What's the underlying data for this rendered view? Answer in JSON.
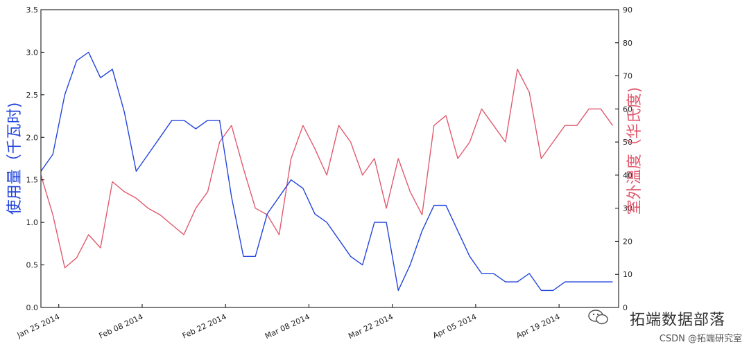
{
  "chart_data": {
    "type": "line",
    "left_axis": {
      "label": "使用量（千瓦时)",
      "ylim": [
        0,
        3.5
      ],
      "ticks": [
        "0.0",
        "0.5",
        "1.0",
        "1.5",
        "2.0",
        "2.5",
        "3.0",
        "3.5"
      ]
    },
    "right_axis": {
      "label": "室外温度（华氏度)",
      "ylim": [
        0,
        90
      ],
      "ticks": [
        "0",
        "10",
        "20",
        "30",
        "40",
        "50",
        "60",
        "70",
        "80",
        "90"
      ]
    },
    "x_axis": {
      "start": "2014-01-22",
      "end": "2014-04-29",
      "tick_dates": [
        "2014-01-25",
        "2014-02-08",
        "2014-02-22",
        "2014-03-08",
        "2014-03-22",
        "2014-04-05",
        "2014-04-19"
      ],
      "tick_labels": [
        "Jan 25 2014",
        "Feb 08 2014",
        "Feb 22 2014",
        "Mar 08 2014",
        "Mar 22 2014",
        "Apr 05 2014",
        "Apr 19 2014"
      ]
    },
    "grid": false,
    "colors": {
      "usage": "#2244dd",
      "temperature": "#e05a6e"
    },
    "series": [
      {
        "axis": "left",
        "x": [
          "2014-01-22",
          "2014-01-24",
          "2014-01-26",
          "2014-01-28",
          "2014-01-30",
          "2014-02-01",
          "2014-02-03",
          "2014-02-05",
          "2014-02-07",
          "2014-02-09",
          "2014-02-11",
          "2014-02-13",
          "2014-02-15",
          "2014-02-17",
          "2014-02-19",
          "2014-02-21",
          "2014-02-23",
          "2014-02-25",
          "2014-02-27",
          "2014-03-01",
          "2014-03-03",
          "2014-03-05",
          "2014-03-07",
          "2014-03-09",
          "2014-03-11",
          "2014-03-13",
          "2014-03-15",
          "2014-03-17",
          "2014-03-19",
          "2014-03-21",
          "2014-03-23",
          "2014-03-25",
          "2014-03-27",
          "2014-03-29",
          "2014-03-31",
          "2014-04-02",
          "2014-04-04",
          "2014-04-06",
          "2014-04-08",
          "2014-04-10",
          "2014-04-12",
          "2014-04-14",
          "2014-04-16",
          "2014-04-18",
          "2014-04-20",
          "2014-04-22",
          "2014-04-24",
          "2014-04-26",
          "2014-04-28"
        ],
        "values": [
          1.6,
          1.8,
          2.5,
          2.9,
          3.0,
          2.7,
          2.8,
          2.3,
          1.6,
          1.8,
          2.0,
          2.2,
          2.2,
          2.1,
          2.2,
          2.2,
          1.3,
          0.6,
          0.6,
          1.1,
          1.3,
          1.5,
          1.4,
          1.1,
          1.0,
          0.8,
          0.6,
          0.5,
          1.0,
          1.0,
          0.2,
          0.5,
          0.9,
          1.2,
          1.2,
          0.9,
          0.6,
          0.4,
          0.4,
          0.3,
          0.3,
          0.4,
          0.2,
          0.2,
          0.3,
          0.3,
          0.3,
          0.3,
          0.3
        ]
      },
      {
        "axis": "right",
        "x": [
          "2014-01-22",
          "2014-01-24",
          "2014-01-26",
          "2014-01-28",
          "2014-01-30",
          "2014-02-01",
          "2014-02-03",
          "2014-02-05",
          "2014-02-07",
          "2014-02-09",
          "2014-02-11",
          "2014-02-13",
          "2014-02-15",
          "2014-02-17",
          "2014-02-19",
          "2014-02-21",
          "2014-02-23",
          "2014-02-25",
          "2014-02-27",
          "2014-03-01",
          "2014-03-03",
          "2014-03-05",
          "2014-03-07",
          "2014-03-09",
          "2014-03-11",
          "2014-03-13",
          "2014-03-15",
          "2014-03-17",
          "2014-03-19",
          "2014-03-21",
          "2014-03-23",
          "2014-03-25",
          "2014-03-27",
          "2014-03-29",
          "2014-03-31",
          "2014-04-02",
          "2014-04-04",
          "2014-04-06",
          "2014-04-08",
          "2014-04-10",
          "2014-04-12",
          "2014-04-14",
          "2014-04-16",
          "2014-04-18",
          "2014-04-20",
          "2014-04-22",
          "2014-04-24",
          "2014-04-26",
          "2014-04-28"
        ],
        "values": [
          40,
          28,
          12,
          15,
          22,
          18,
          38,
          35,
          33,
          30,
          28,
          25,
          22,
          30,
          35,
          50,
          55,
          42,
          30,
          28,
          22,
          45,
          55,
          48,
          40,
          55,
          50,
          40,
          45,
          30,
          45,
          35,
          28,
          55,
          58,
          45,
          50,
          60,
          55,
          50,
          72,
          65,
          45,
          50,
          55,
          55,
          60,
          60,
          55
        ]
      }
    ]
  },
  "watermark": {
    "main": "拓端数据部落",
    "sub": "CSDN @拓端研究室",
    "icon": "wechat-icon"
  }
}
